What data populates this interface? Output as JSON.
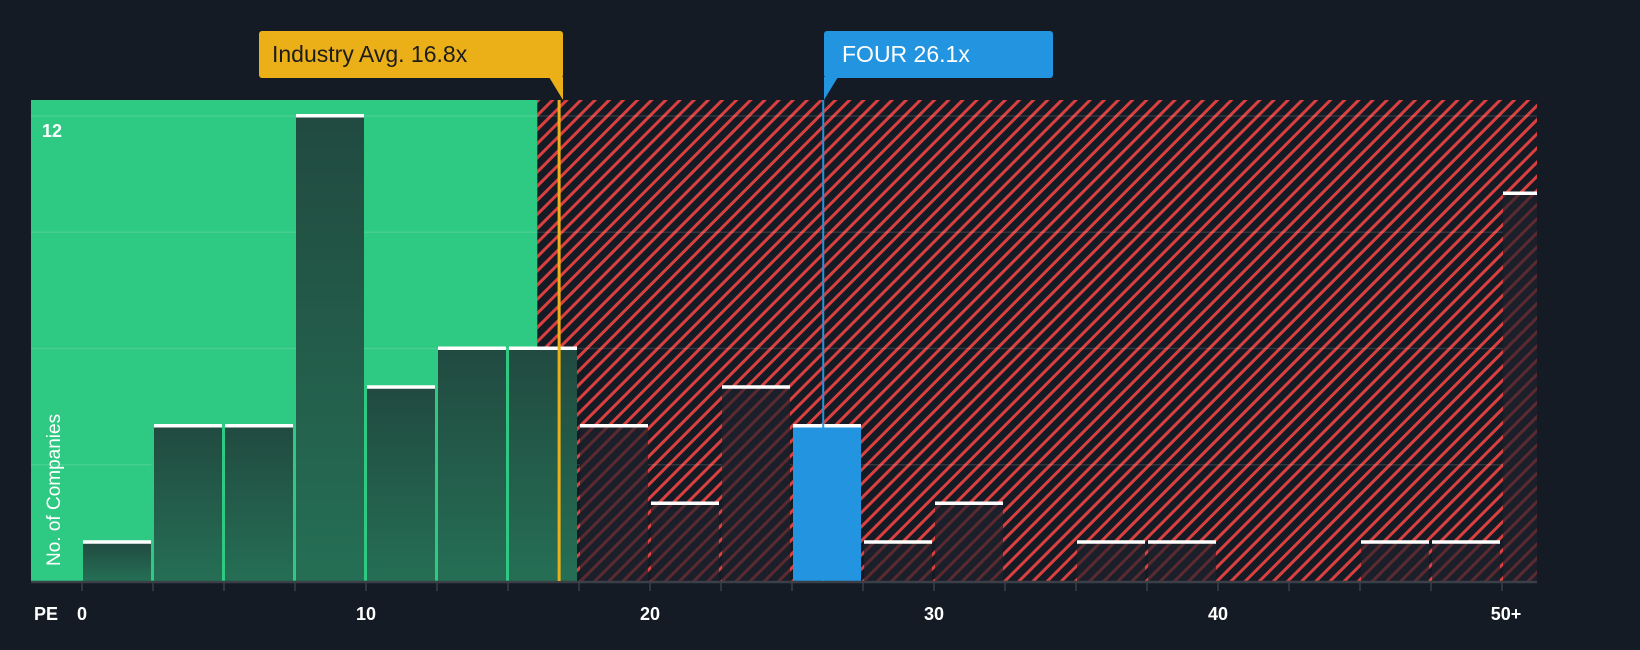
{
  "chart_data": {
    "type": "bar",
    "title": "",
    "xlabel": "PE",
    "ylabel": "No. of Companies",
    "x_tick_labels": [
      "0",
      "10",
      "20",
      "30",
      "40",
      "50+"
    ],
    "y_tick_labels": [
      "12"
    ],
    "ylim": [
      0,
      12
    ],
    "bin_width": 2.5,
    "categories": [
      "0-2.5",
      "2.5-5",
      "5-7.5",
      "7.5-10",
      "10-12.5",
      "12.5-15",
      "15-17.5",
      "17.5-20",
      "20-22.5",
      "22.5-25",
      "25-27.5",
      "27.5-30",
      "30-32.5",
      "32.5-35",
      "35-37.5",
      "37.5-40",
      "40-42.5",
      "42.5-45",
      "45-47.5",
      "47.5-50",
      "50+"
    ],
    "values": [
      1,
      4,
      4,
      12,
      5,
      6,
      6,
      4,
      2,
      5,
      4,
      1,
      2,
      0,
      1,
      1,
      0,
      0,
      1,
      1,
      10
    ],
    "highlight_bin_index": 10,
    "annotations": [
      {
        "label": "Industry Avg. 16.8x",
        "value": 16.8,
        "color": "#ebb018"
      },
      {
        "label": "FOUR 26.1x",
        "value": 26.1,
        "color": "#2394e0"
      }
    ],
    "fair_zone_end": 16.0,
    "grid": true
  },
  "colors": {
    "background": "#151b24",
    "fair_zone": "#2ec982",
    "bar_in_fair": "#214a40",
    "hatch": "#d9403f",
    "industry": "#ebb018",
    "company": "#2394e0",
    "bar_cap": "#ffffff"
  },
  "labels": {
    "industry_avg": "Industry Avg. 16.8x",
    "company": "FOUR 26.1x",
    "y_axis": "No. of Companies",
    "y_max": "12",
    "x_axis": "PE"
  }
}
